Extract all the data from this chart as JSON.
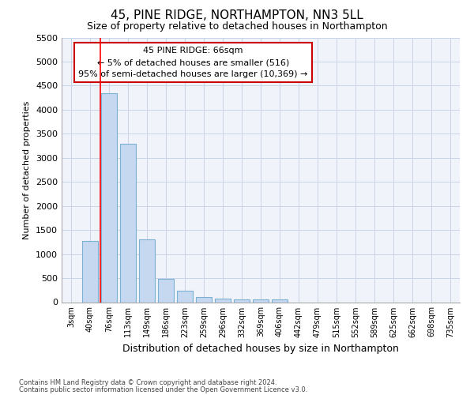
{
  "title": "45, PINE RIDGE, NORTHAMPTON, NN3 5LL",
  "subtitle": "Size of property relative to detached houses in Northampton",
  "xlabel": "Distribution of detached houses by size in Northampton",
  "ylabel": "Number of detached properties",
  "categories": [
    "3sqm",
    "40sqm",
    "76sqm",
    "113sqm",
    "149sqm",
    "186sqm",
    "223sqm",
    "259sqm",
    "296sqm",
    "332sqm",
    "369sqm",
    "406sqm",
    "442sqm",
    "479sqm",
    "515sqm",
    "552sqm",
    "589sqm",
    "625sqm",
    "662sqm",
    "698sqm",
    "735sqm"
  ],
  "values": [
    0,
    1275,
    4350,
    3300,
    1300,
    480,
    235,
    100,
    75,
    50,
    50,
    50,
    0,
    0,
    0,
    0,
    0,
    0,
    0,
    0,
    0
  ],
  "bar_color": "#c5d8f0",
  "bar_edge_color": "#7bafd4",
  "red_line_index": 2,
  "ylim": [
    0,
    5500
  ],
  "yticks": [
    0,
    500,
    1000,
    1500,
    2000,
    2500,
    3000,
    3500,
    4000,
    4500,
    5000,
    5500
  ],
  "annotation_text": "45 PINE RIDGE: 66sqm\n← 5% of detached houses are smaller (516)\n95% of semi-detached houses are larger (10,369) →",
  "annotation_box_color": "#ffffff",
  "annotation_box_edge_color": "#cc0000",
  "footer_line1": "Contains HM Land Registry data © Crown copyright and database right 2024.",
  "footer_line2": "Contains public sector information licensed under the Open Government Licence v3.0.",
  "background_color": "#ffffff",
  "plot_bg_color": "#f0f4fa",
  "grid_color": "#c8d4e8"
}
